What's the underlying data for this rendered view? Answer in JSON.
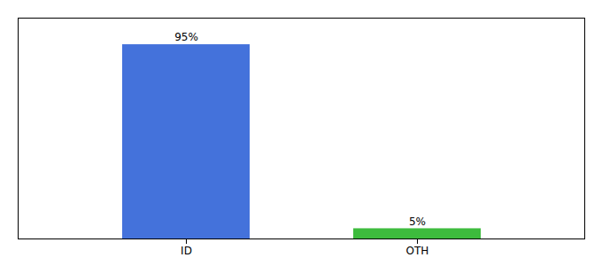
{
  "chart_data": {
    "type": "bar",
    "categories": [
      "ID",
      "OTH"
    ],
    "values": [
      95,
      5
    ],
    "value_labels": [
      "95%",
      "5%"
    ],
    "colors": [
      "#4472db",
      "#3dbb3d"
    ],
    "ylim": [
      0,
      108
    ],
    "data_labels": true,
    "tick_labels": "x"
  }
}
